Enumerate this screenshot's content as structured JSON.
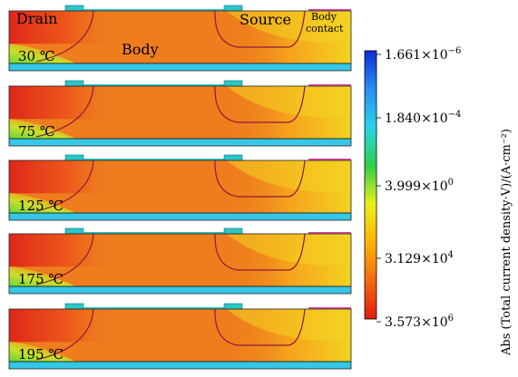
{
  "labels": {
    "drain": "Drain",
    "body": "Body",
    "source": "Source",
    "body_contact_line1": "Body",
    "body_contact_line2": "contact"
  },
  "panels": [
    {
      "temp": "30 ℃"
    },
    {
      "temp": "75 ℃"
    },
    {
      "temp": "125 ℃"
    },
    {
      "temp": "175 ℃"
    },
    {
      "temp": "195 ℃"
    }
  ],
  "colorbar": {
    "title": "Abs (Total current density·V)/(A·cm⁻²)",
    "tick_mantissas": [
      "1.661",
      "1.840",
      "3.999",
      "3.129",
      "3.573"
    ],
    "tick_times": "×10",
    "tick_exponents": [
      "−6",
      "−4",
      "0",
      "4",
      "6"
    ],
    "gradient": [
      "#0a2fd8",
      "#2a8ef0",
      "#27d4e8",
      "#2fcf4a",
      "#e9f01a",
      "#ffb400",
      "#f26a12",
      "#e21b10"
    ]
  },
  "colors": {
    "body_fill": "#ef7d1e",
    "contact": "#2bc7c7",
    "substrate": "#36c6e6",
    "hot": "#e0271b",
    "drain_green": "#30d040",
    "yellow": "#f2d320",
    "junction": "#8a1a3a"
  }
}
